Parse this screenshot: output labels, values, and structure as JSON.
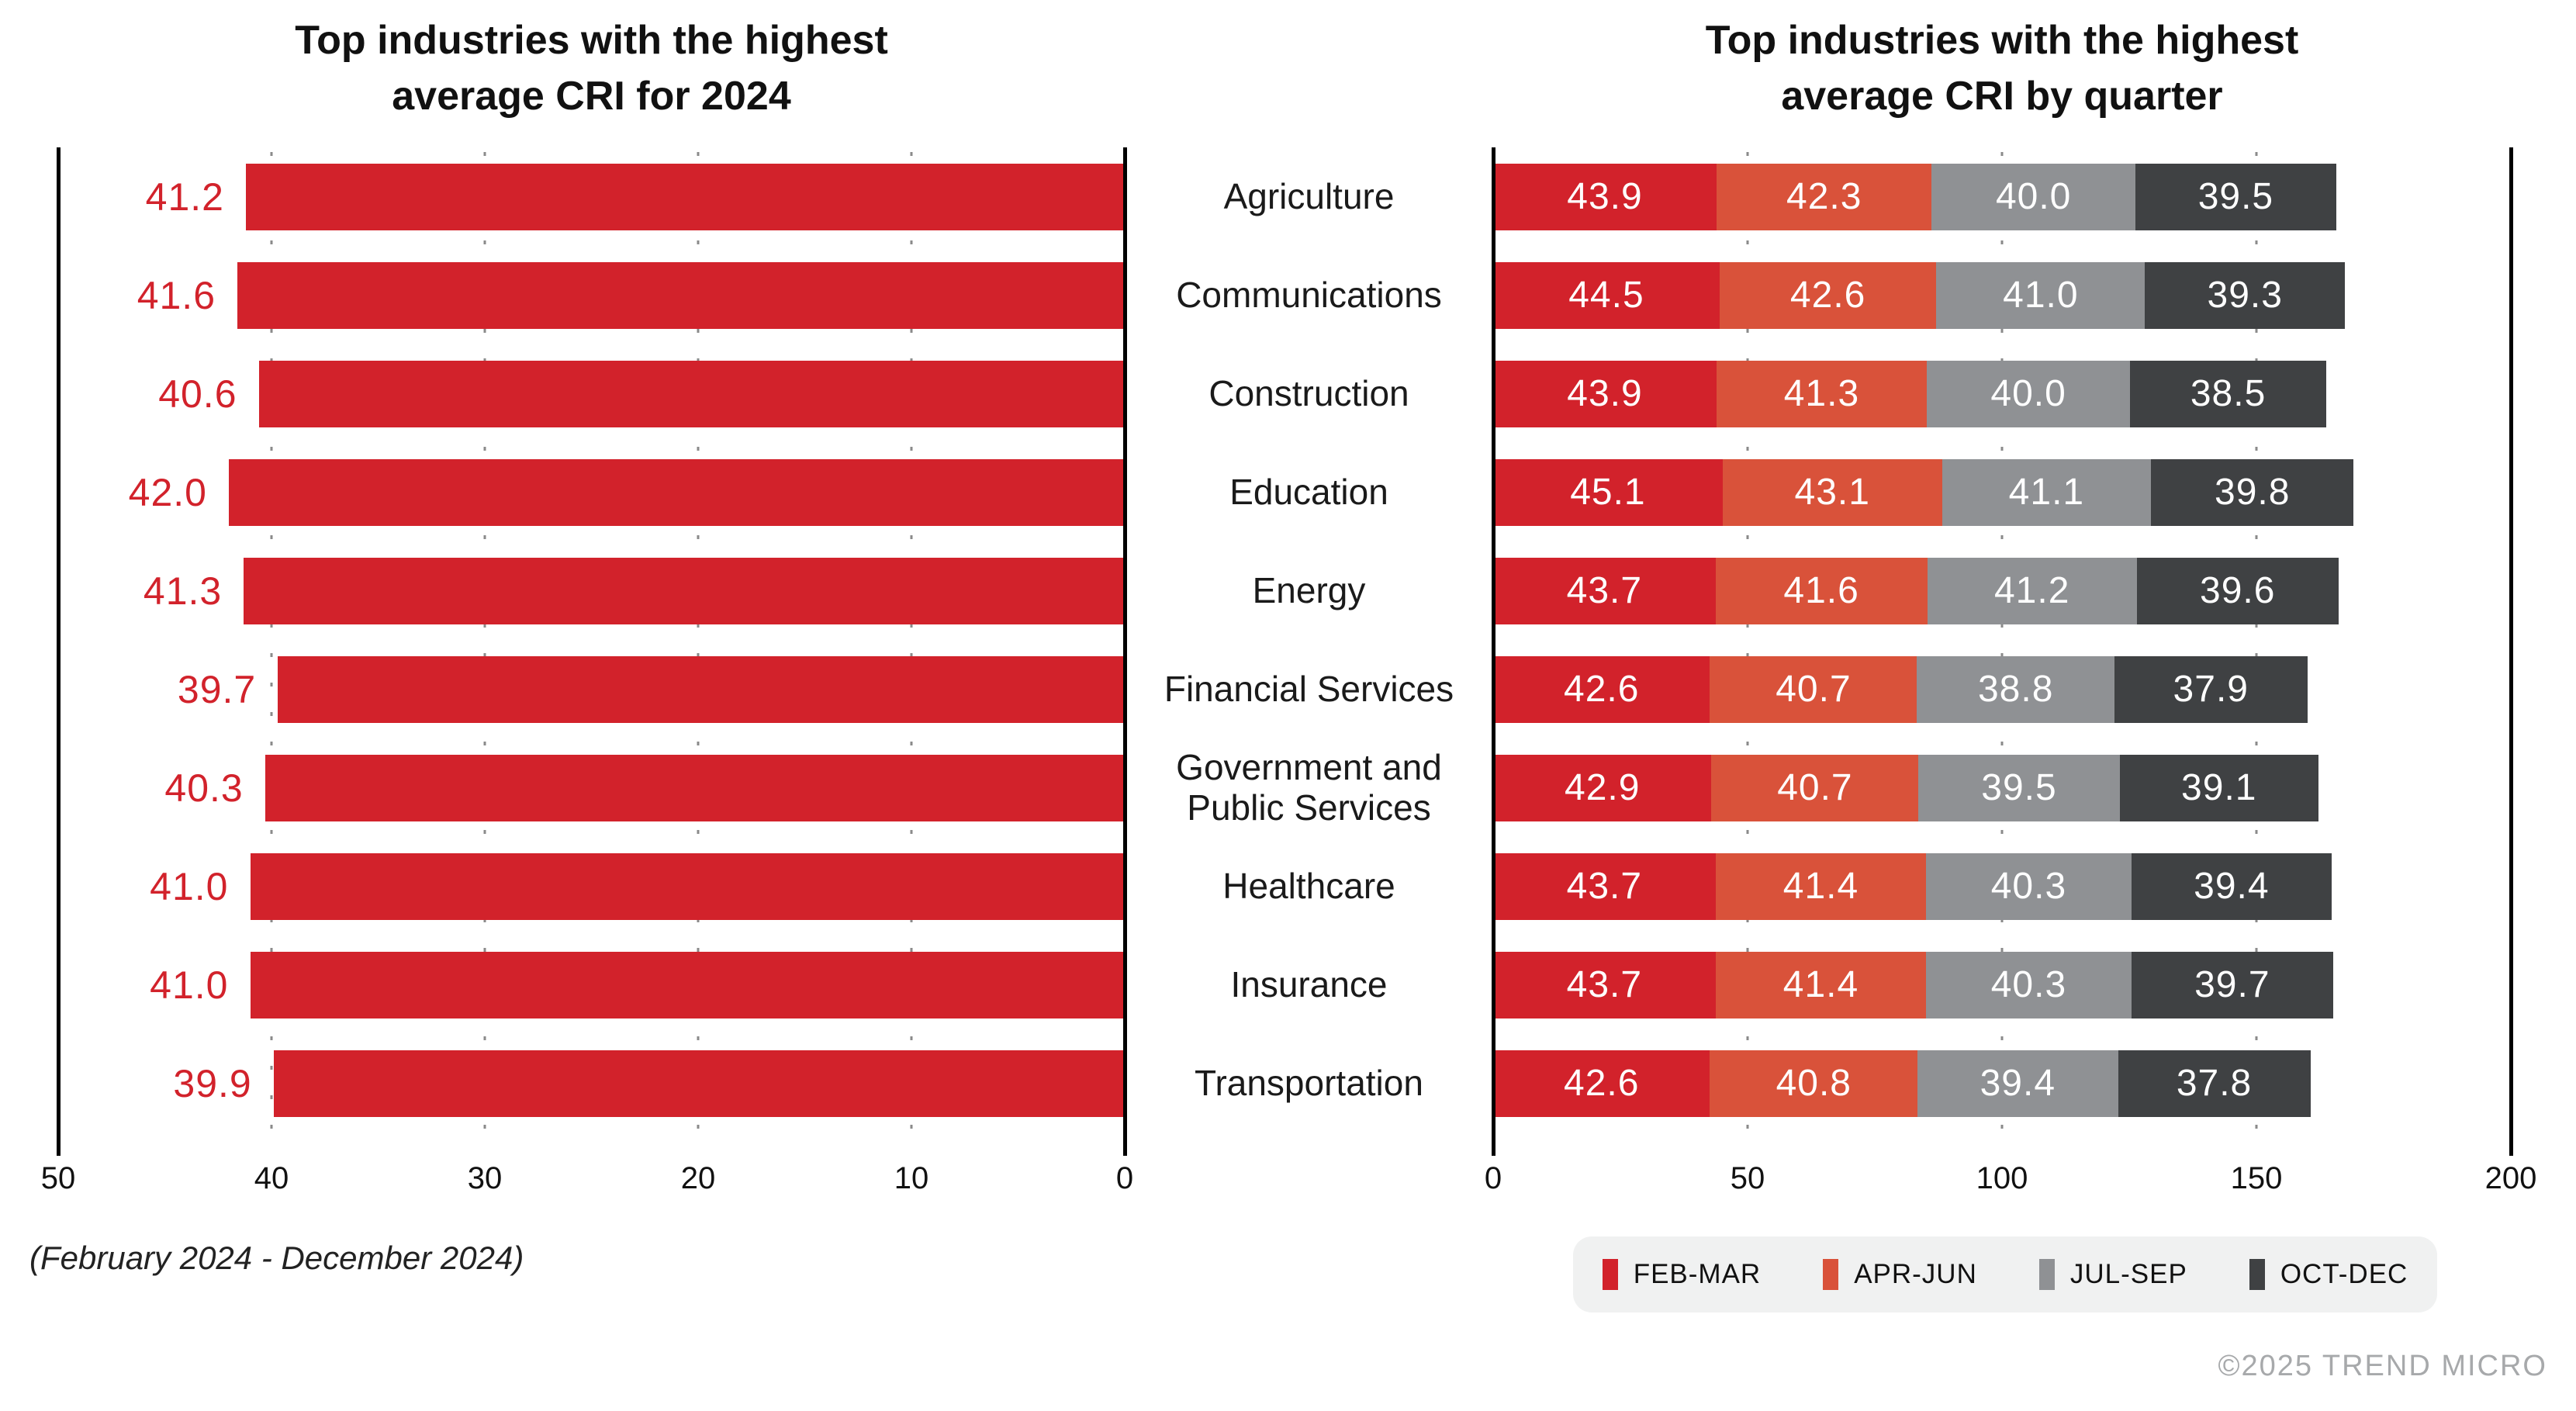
{
  "titles": {
    "left_lines": [
      "Top industries with the highest",
      "average CRI for 2024"
    ],
    "right_lines": [
      "Top industries with the highest",
      "average CRI by quarter"
    ]
  },
  "footnote": "(February 2024 - December 2024)",
  "copyright": "©2025 TREND MICRO",
  "palette": {
    "bar_red": "#d2222b",
    "value_label_red": "#d2222b",
    "axis_line": "#000000",
    "gridline_gray": "#8a8a8a",
    "legend_bg": "#f0f1f1",
    "copyright_gray": "#a7a9ab",
    "quarter_colors": [
      "#d2222b",
      "#d9523a",
      "#8f9194",
      "#3f4143"
    ]
  },
  "categories": [
    "Agriculture",
    "Communications",
    "Construction",
    "Education",
    "Energy",
    "Financial Services",
    "Government and Public Services",
    "Healthcare",
    "Insurance",
    "Transportation"
  ],
  "chart_data": [
    {
      "type": "bar",
      "title": "Top industries with the highest average CRI for 2024",
      "subtitle": "(February 2024 - December 2024)",
      "orientation": "horizontal",
      "axis_reversed": true,
      "categories": [
        "Agriculture",
        "Communications",
        "Construction",
        "Education",
        "Energy",
        "Financial Services",
        "Government and Public Services",
        "Healthcare",
        "Insurance",
        "Transportation"
      ],
      "values": [
        "41.2",
        "41.6",
        "40.6",
        "42.0",
        "41.3",
        "39.7",
        "40.3",
        "41.0",
        "41.0",
        "39.9"
      ],
      "xmax": 50,
      "xlim": [
        50,
        0
      ],
      "ticks": [
        "50",
        "40",
        "30",
        "20",
        "10",
        "0"
      ],
      "grid": "dotted-vertical",
      "bar_color": "#d2222b",
      "value_labels": "outside-left, red"
    },
    {
      "type": "bar",
      "subtype": "stacked",
      "title": "Top industries with the highest average CRI by quarter",
      "orientation": "horizontal",
      "categories": [
        "Agriculture",
        "Communications",
        "Construction",
        "Education",
        "Energy",
        "Financial Services",
        "Government and Public Services",
        "Healthcare",
        "Insurance",
        "Transportation"
      ],
      "series": [
        {
          "name": "FEB-MAR",
          "color": "#d2222b",
          "values": [
            "43.9",
            "44.5",
            "43.9",
            "45.1",
            "43.7",
            "42.6",
            "42.9",
            "43.7",
            "43.7",
            "42.6"
          ]
        },
        {
          "name": "APR-JUN",
          "color": "#d9523a",
          "values": [
            "42.3",
            "42.6",
            "41.3",
            "43.1",
            "41.6",
            "40.7",
            "40.7",
            "41.4",
            "41.4",
            "40.8"
          ]
        },
        {
          "name": "JUL-SEP",
          "color": "#8f9194",
          "values": [
            "40.0",
            "41.0",
            "40.0",
            "41.1",
            "41.2",
            "38.8",
            "39.5",
            "40.3",
            "40.3",
            "39.4"
          ]
        },
        {
          "name": "OCT-DEC",
          "color": "#3f4143",
          "values": [
            "39.5",
            "39.3",
            "38.5",
            "39.8",
            "39.6",
            "37.9",
            "39.1",
            "39.4",
            "39.7",
            "37.8"
          ]
        }
      ],
      "xmax": 200,
      "xlim": [
        0,
        200
      ],
      "ticks": [
        "0",
        "50",
        "100",
        "150",
        "200"
      ],
      "grid": "dotted-vertical",
      "legend_position": "bottom-right",
      "value_labels": "inside, white"
    }
  ]
}
